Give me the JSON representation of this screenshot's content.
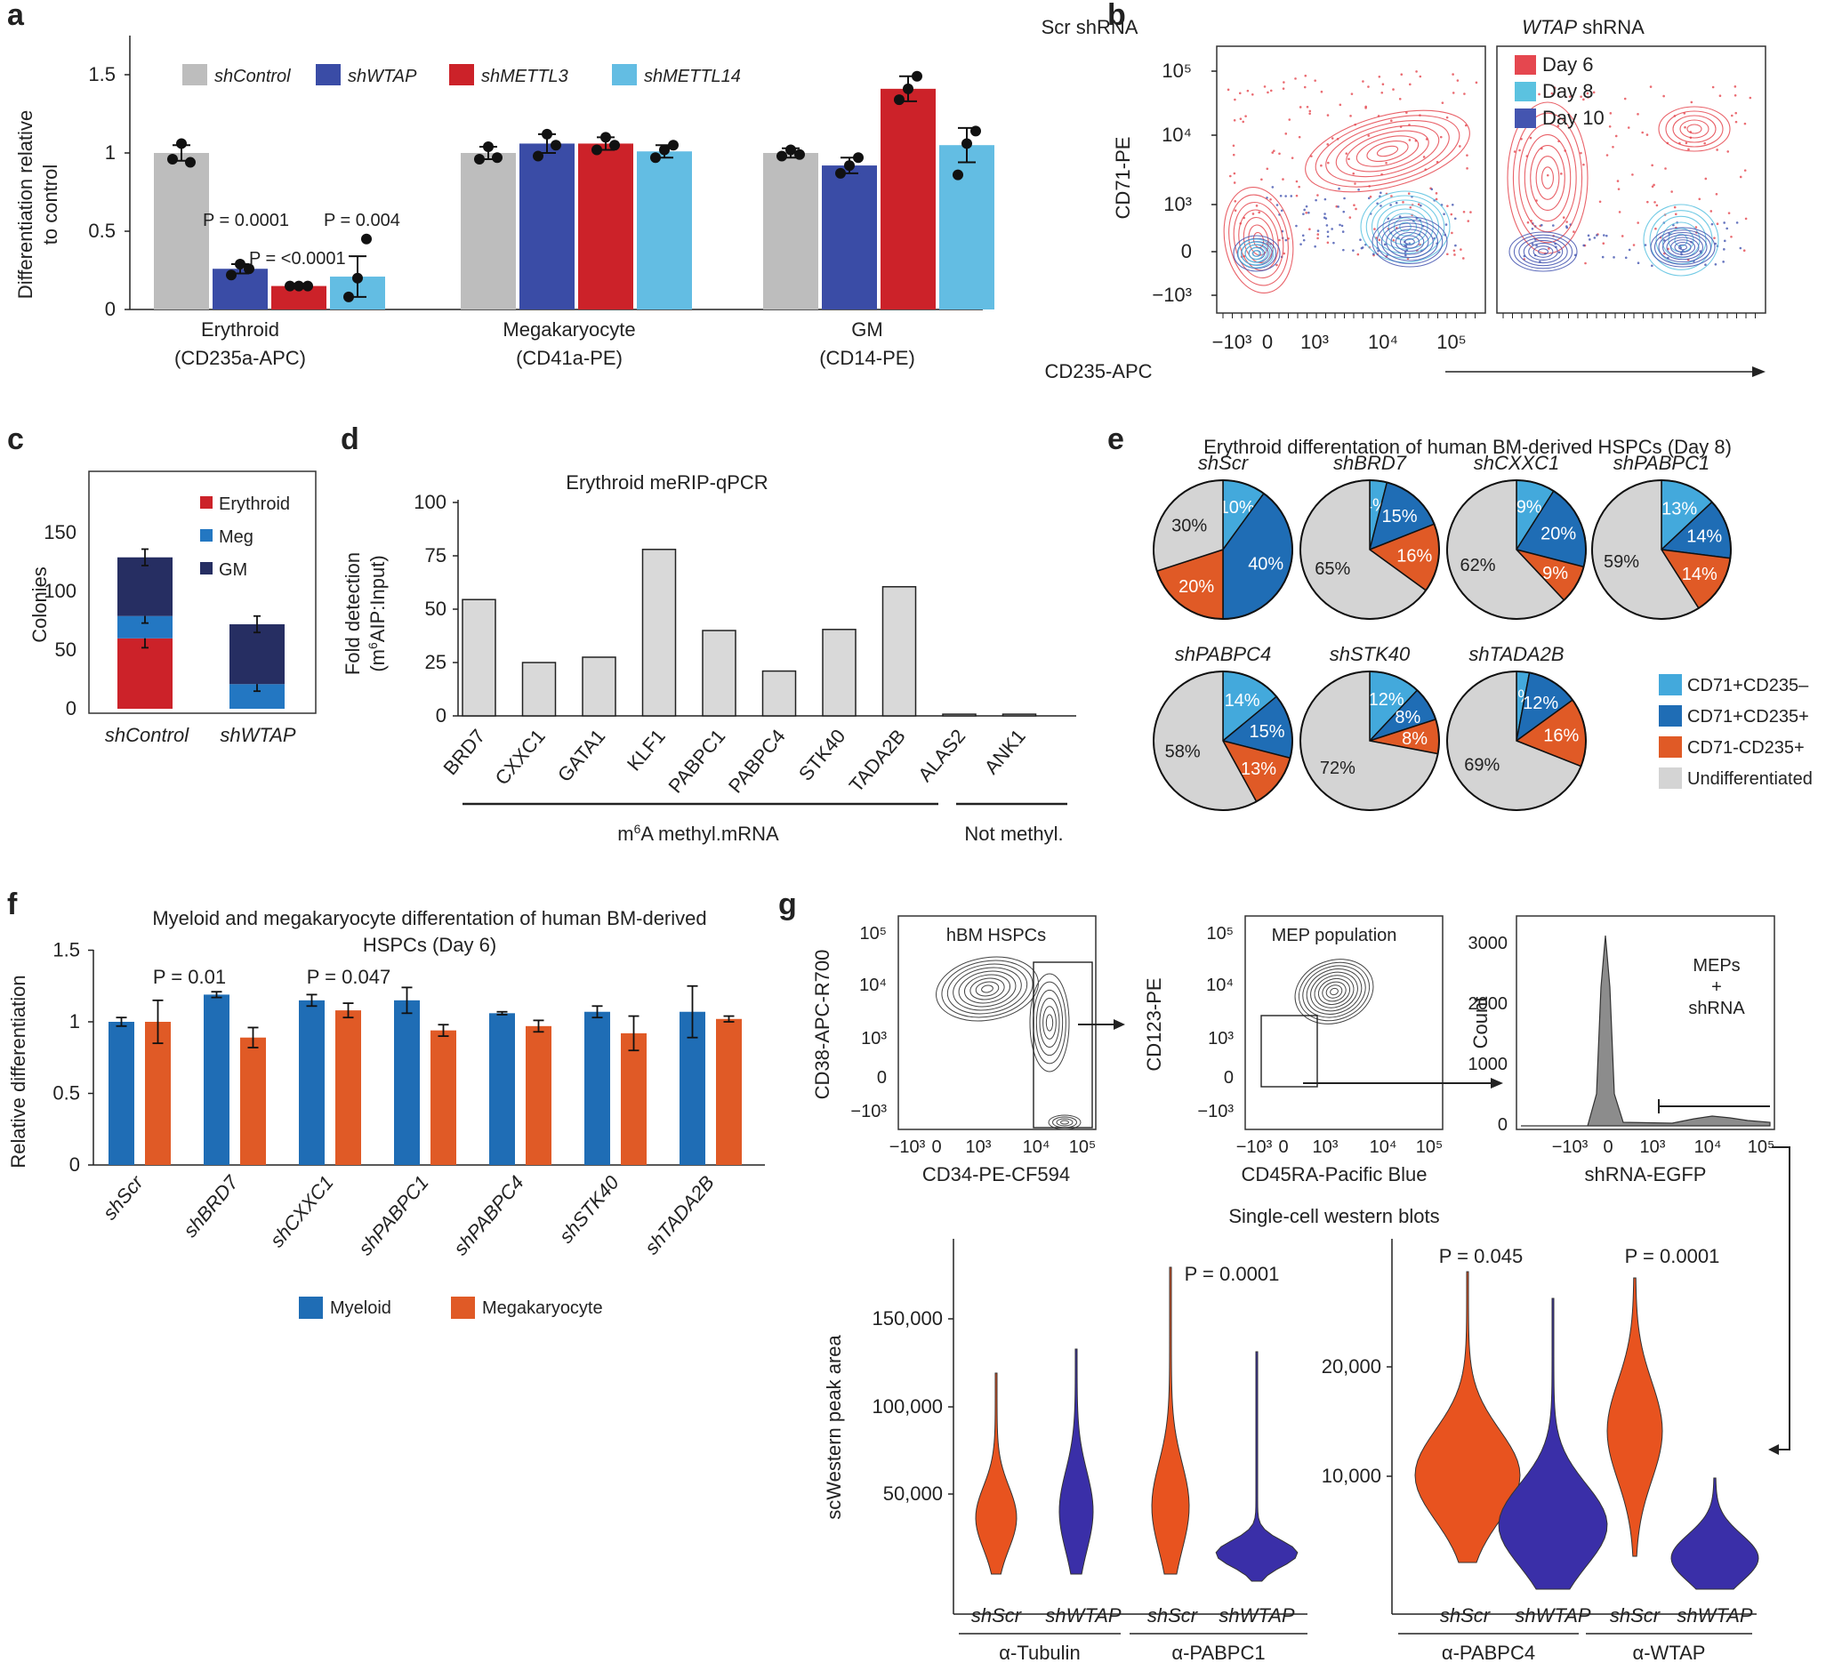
{
  "panels": {
    "a": {
      "label": "a",
      "ylabel": [
        "Differentiation relative",
        "to control"
      ],
      "legend": [
        {
          "name": "shControl",
          "color": "#bdbdbd"
        },
        {
          "name": "shWTAP",
          "color": "#3a4ca6"
        },
        {
          "name": "shMETTL3",
          "color": "#cc2229"
        },
        {
          "name": "shMETTL14",
          "color": "#63bde3"
        }
      ],
      "groups": [
        {
          "line1": "Erythroid",
          "line2": "(CD235a-APC)"
        },
        {
          "line1": "Megakaryocyte",
          "line2": "(CD41a-PE)"
        },
        {
          "line1": "GM",
          "line2": "(CD14-PE)"
        }
      ],
      "annotations": [
        "P = 0.0001",
        "P = <0.0001",
        "P = 0.004"
      ],
      "yticks": [
        "0",
        "0.5",
        "1",
        "1.5"
      ]
    },
    "b": {
      "label": "b",
      "title_left": "Scr shRNA",
      "title_right_italic": "WTAP",
      "title_right_rest": " shRNA",
      "ylabel": "CD71-PE",
      "xlabel": "CD235-APC",
      "yticks": [
        "10⁵",
        "10⁴",
        "10³",
        "0",
        "−10³"
      ],
      "xticks": [
        "−10³",
        "0",
        "10³",
        "10⁴",
        "10⁵"
      ],
      "legend": [
        {
          "name": "Day 6",
          "color": "#e5474f"
        },
        {
          "name": "Day 8",
          "color": "#5bc2e0"
        },
        {
          "name": "Day 10",
          "color": "#4455b0"
        }
      ]
    },
    "c": {
      "label": "c",
      "ylabel": "Colonies",
      "yticks": [
        "0",
        "50",
        "100",
        "150"
      ],
      "legend": [
        {
          "name": "Erythroid",
          "color": "#cc2229"
        },
        {
          "name": "Meg",
          "color": "#2377c2"
        },
        {
          "name": "GM",
          "color": "#262e62"
        }
      ],
      "categories": [
        "shControl",
        "shWTAP"
      ]
    },
    "d": {
      "label": "d",
      "title": "Erythroid meRIP-qPCR",
      "ylabel_line1": "Fold detection",
      "ylabel_line2_pre": "(m",
      "ylabel_line2_sup": "6",
      "ylabel_line2_post": "AIP:Input)",
      "yticks": [
        "0",
        "25",
        "50",
        "75",
        "100"
      ],
      "group1_pre": "m",
      "group1_sup": "6",
      "group1_post": "A methyl.mRNA",
      "group2": "Not methyl."
    },
    "e": {
      "label": "e",
      "title": "Erythroid differentation of human BM-derived HSPCs (Day 8)",
      "legend": [
        {
          "name": "CD71+CD235–",
          "color": "#43a9dc"
        },
        {
          "name": "CD71+CD235+",
          "color": "#1f6db5"
        },
        {
          "name": "CD71-CD235+",
          "color": "#e05a26"
        },
        {
          "name": "Undifferentiated",
          "color": "#d4d4d4"
        }
      ],
      "pies": [
        {
          "name": "shScr",
          "values": [
            10,
            40,
            20,
            30
          ],
          "labels": [
            "10%",
            "40%",
            "20%",
            "30%"
          ]
        },
        {
          "name": "shBRD7",
          "values": [
            4,
            15,
            16,
            65
          ],
          "labels": [
            "4%",
            "15%",
            "16%",
            "65%"
          ]
        },
        {
          "name": "shCXXC1",
          "values": [
            9,
            20,
            9,
            62
          ],
          "labels": [
            "9%",
            "20%",
            "9%",
            "62%"
          ]
        },
        {
          "name": "shPABPC1",
          "values": [
            13,
            14,
            14,
            59
          ],
          "labels": [
            "13%",
            "14%",
            "14%",
            "59%"
          ]
        },
        {
          "name": "shPABPC4",
          "values": [
            14,
            15,
            13,
            58
          ],
          "labels": [
            "14%",
            "15%",
            "13%",
            "58%"
          ]
        },
        {
          "name": "shSTK40",
          "values": [
            12,
            8,
            8,
            72
          ],
          "labels": [
            "12%",
            "8%",
            "8%",
            "72%"
          ]
        },
        {
          "name": "shTADA2B",
          "values": [
            3,
            12,
            16,
            69
          ],
          "labels": [
            "3%",
            "12%",
            "16%",
            "69%"
          ]
        }
      ]
    },
    "f": {
      "label": "f",
      "title_line1": "Myeloid and megakaryocyte differentation of human BM-derived",
      "title_line2": "HSPCs (Day 6)",
      "ylabel": "Relative differentiation",
      "yticks": [
        "0",
        "0.5",
        "1",
        "1.5"
      ],
      "annotations": [
        "P = 0.01",
        "P = 0.047"
      ],
      "legend": [
        {
          "name": "Myeloid",
          "color": "#1f6db5"
        },
        {
          "name": "Megakaryocyte",
          "color": "#e05a26"
        }
      ]
    },
    "g": {
      "label": "g",
      "flow1": {
        "label": "hBM HSPCs",
        "ylabel": "CD38-APC-R700",
        "xlabel": "CD34-PE-CF594"
      },
      "flow2": {
        "label": "MEP population",
        "ylabel": "CD123-PE",
        "xlabel": "CD45RA-Pacific Blue"
      },
      "hist": {
        "label_lines": [
          "MEPs",
          "+",
          "shRNA"
        ],
        "ylabel": "Count",
        "xlabel": "shRNA-EGFP",
        "yticks": [
          "0",
          "1000",
          "2000",
          "3000"
        ]
      },
      "flow_yticks": [
        "10⁵",
        "10⁴",
        "10³",
        "0",
        "−10³"
      ],
      "flow_xticks": [
        "−10³",
        "0",
        "10³",
        "10⁴",
        "10⁵"
      ],
      "sc_title": "Single-cell western blots",
      "sc_ylabel": "scWestern peak area",
      "left_yticks": [
        "50,000",
        "100,000",
        "150,000"
      ],
      "right_yticks": [
        "10,000",
        "20,000"
      ],
      "violin_labels": [
        "shScr",
        "shWTAP",
        "shScr",
        "shWTAP",
        "shScr",
        "shWTAP",
        "shScr",
        "shWTAP"
      ],
      "antibodies": [
        "α-Tubulin",
        "α-PABPC1",
        "α-PABPC4",
        "α-WTAP"
      ],
      "annotations": [
        "P = 0.0001",
        "P = 0.045",
        "P = 0.0001"
      ],
      "colors": {
        "scr": "#e8531f",
        "wtap": "#3a2fa8"
      }
    }
  },
  "chart_data": [
    {
      "panel": "a",
      "type": "bar",
      "categories": [
        "Erythroid (CD235a-APC)",
        "Megakaryocyte (CD41a-PE)",
        "GM (CD14-PE)"
      ],
      "series": [
        {
          "name": "shControl",
          "values": [
            1.0,
            1.0,
            1.0
          ],
          "errors": [
            0.05,
            0.04,
            0.03
          ],
          "points": [
            [
              0.96,
              1.06,
              0.94
            ],
            [
              0.96,
              1.04,
              0.97
            ],
            [
              0.98,
              1.02,
              0.99
            ]
          ]
        },
        {
          "name": "shWTAP",
          "values": [
            0.26,
            1.06,
            0.92
          ],
          "errors": [
            0.03,
            0.06,
            0.05
          ],
          "points": [
            [
              0.22,
              0.29,
              0.26
            ],
            [
              0.98,
              1.12,
              1.05
            ],
            [
              0.87,
              0.92,
              0.97
            ]
          ]
        },
        {
          "name": "shMETTL3",
          "values": [
            0.15,
            1.06,
            1.41
          ],
          "errors": [
            0.01,
            0.04,
            0.08
          ],
          "points": [
            [
              0.15,
              0.15,
              0.15
            ],
            [
              1.02,
              1.1,
              1.05
            ],
            [
              1.34,
              1.41,
              1.49
            ]
          ]
        },
        {
          "name": "shMETTL14",
          "values": [
            0.21,
            1.01,
            1.05
          ],
          "errors": [
            0.13,
            0.04,
            0.11
          ],
          "points": [
            [
              0.08,
              0.2,
              0.45
            ],
            [
              0.97,
              1.02,
              1.05
            ],
            [
              0.86,
              1.06,
              1.14
            ]
          ]
        }
      ],
      "ylim": [
        0,
        1.7
      ]
    },
    {
      "panel": "c",
      "type": "bar",
      "categories": [
        "shControl",
        "shWTAP"
      ],
      "series": [
        {
          "name": "Erythroid",
          "values": [
            60,
            0
          ],
          "errors": [
            8,
            0
          ]
        },
        {
          "name": "Meg",
          "values": [
            19,
            21
          ],
          "errors": [
            6,
            6
          ]
        },
        {
          "name": "GM",
          "values": [
            50,
            51
          ],
          "errors": [
            7,
            7
          ]
        }
      ],
      "ylim": [
        0,
        160
      ]
    },
    {
      "panel": "d",
      "type": "bar",
      "categories": [
        "BRD7",
        "CXXC1",
        "GATA1",
        "KLF1",
        "PABPC1",
        "PABPC4",
        "STK40",
        "TADA2B",
        "ALAS2",
        "ANK1"
      ],
      "values": [
        54.5,
        25,
        27.5,
        78,
        40,
        21,
        40.5,
        60.5,
        0.8,
        0.8
      ],
      "ylim": [
        0,
        100
      ]
    },
    {
      "panel": "f",
      "type": "bar",
      "categories": [
        "shScr",
        "shBRD7",
        "shCXXC1",
        "shPABPC1",
        "shPABPC4",
        "shSTK40",
        "shTADA2B"
      ],
      "series": [
        {
          "name": "Myeloid",
          "values": [
            1.0,
            1.19,
            1.15,
            1.15,
            1.06,
            1.07,
            1.07
          ],
          "errors": [
            0.03,
            0.02,
            0.04,
            0.09,
            0.01,
            0.04,
            0.18
          ]
        },
        {
          "name": "Megakaryocyte",
          "values": [
            1.0,
            0.89,
            1.08,
            0.94,
            0.97,
            0.92,
            1.02
          ],
          "errors": [
            0.15,
            0.07,
            0.05,
            0.04,
            0.04,
            0.12,
            0.02
          ]
        }
      ],
      "ylim": [
        0,
        1.5
      ]
    },
    {
      "panel": "e",
      "type": "pie",
      "categories": [
        "CD71+CD235–",
        "CD71+CD235+",
        "CD71-CD235+",
        "Undifferentiated"
      ]
    }
  ]
}
